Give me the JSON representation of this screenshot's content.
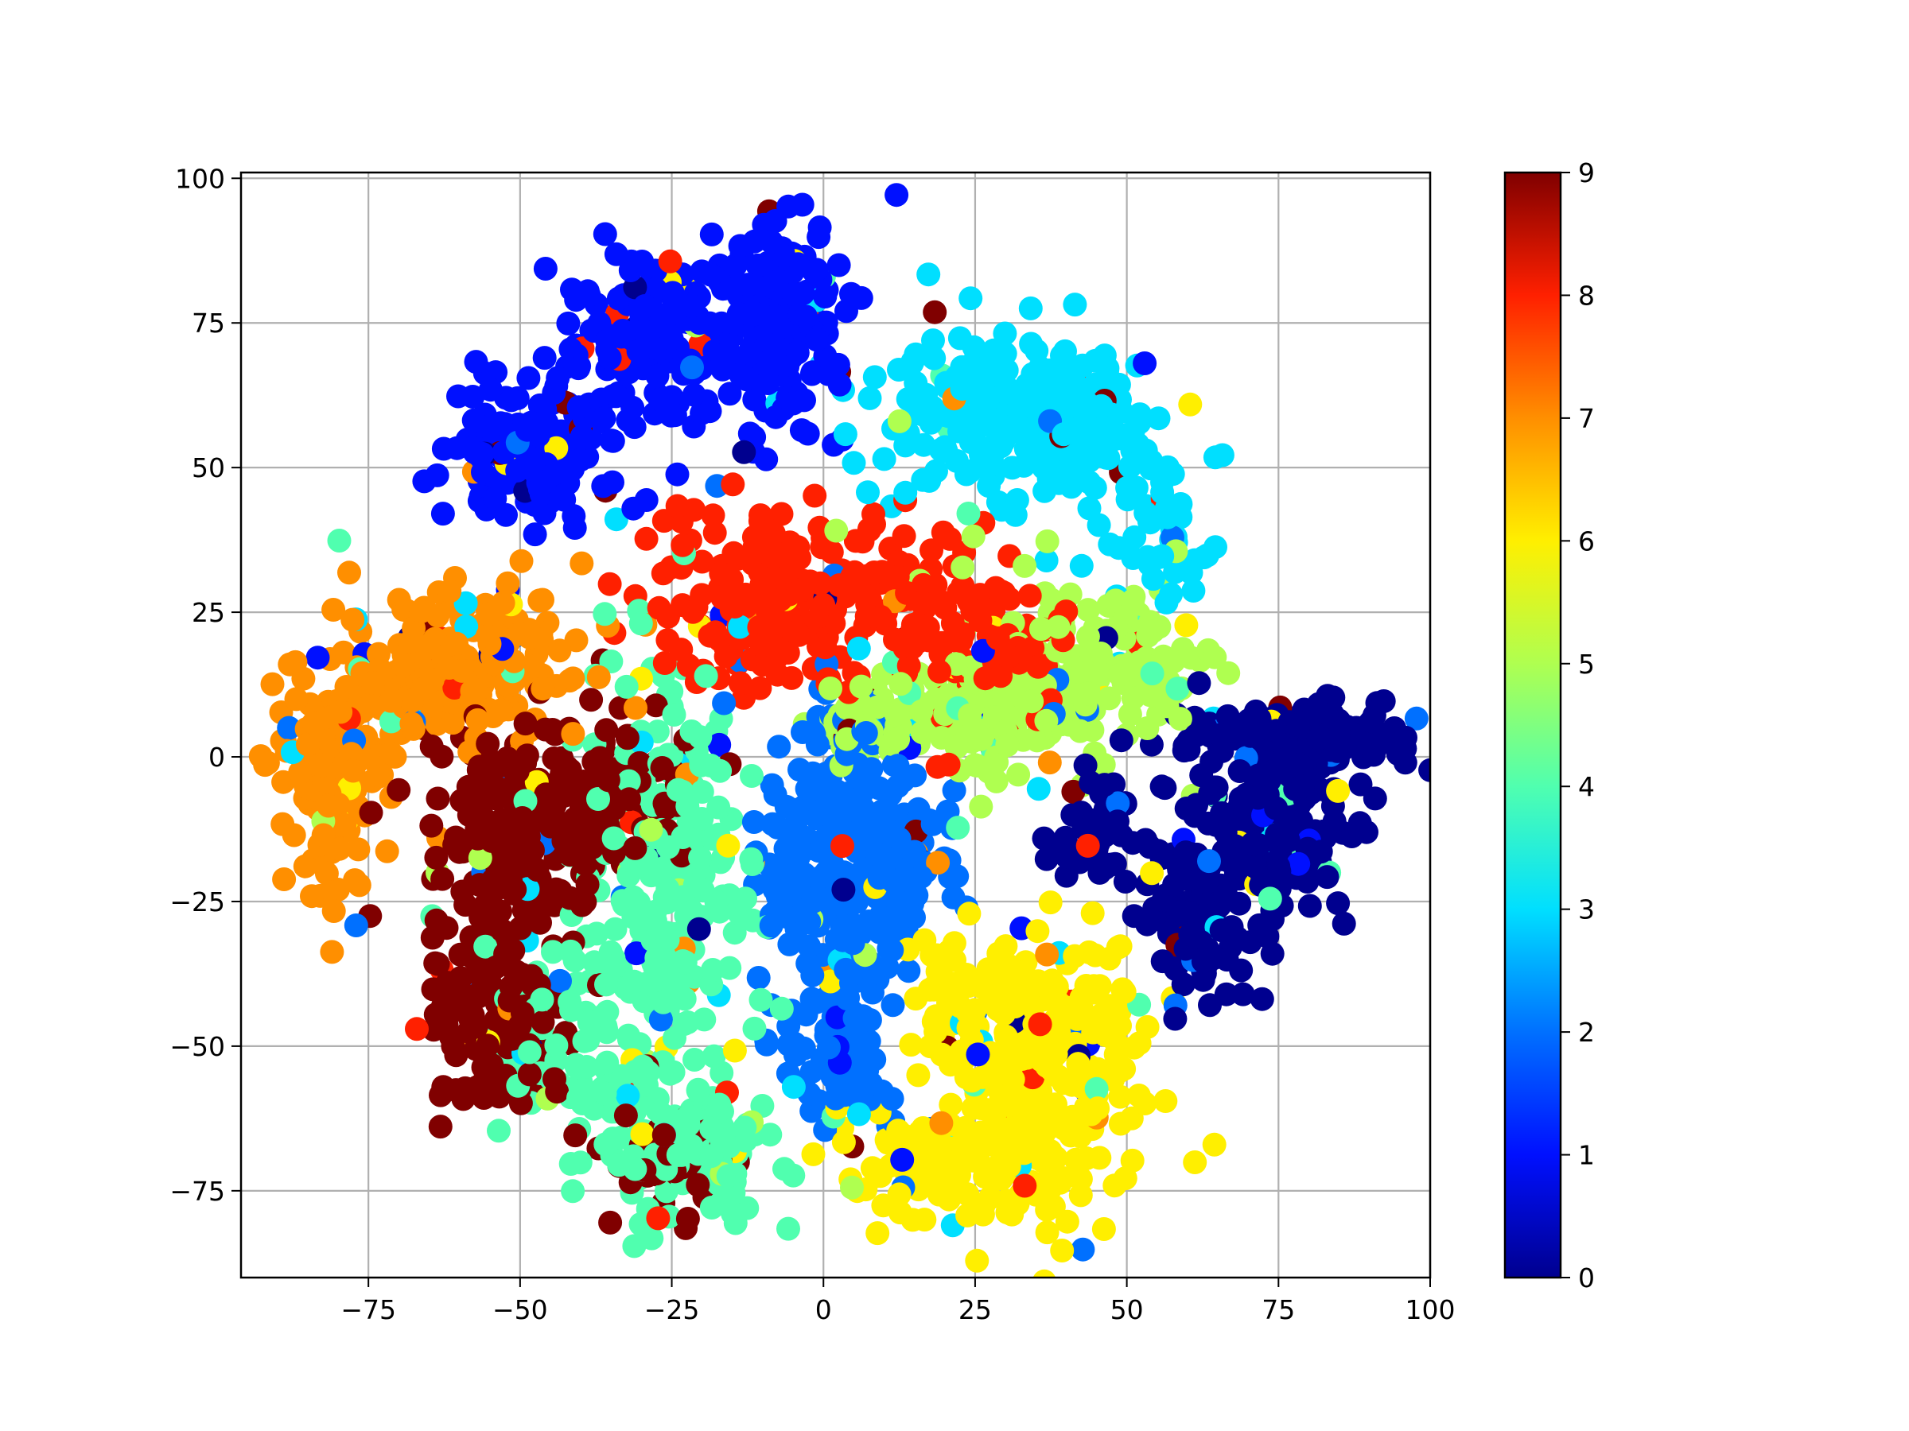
{
  "chart_data": {
    "type": "scatter",
    "title": "",
    "xlabel": "",
    "ylabel": "",
    "xlim": [
      -96,
      100
    ],
    "ylim": [
      -90,
      101
    ],
    "grid": true,
    "x_ticks": [
      -75,
      -50,
      -25,
      0,
      25,
      50,
      75,
      100
    ],
    "x_tick_labels": [
      "−75",
      "−50",
      "−25",
      "0",
      "25",
      "50",
      "75",
      "100"
    ],
    "y_ticks": [
      -75,
      -50,
      -25,
      0,
      25,
      50,
      75,
      100
    ],
    "y_tick_labels": [
      "−75",
      "−50",
      "−25",
      "0",
      "25",
      "50",
      "75",
      "100"
    ],
    "colormap": "jet",
    "colorbar": {
      "range": [
        0,
        9
      ],
      "ticks": [
        0,
        1,
        2,
        3,
        4,
        5,
        6,
        7,
        8,
        9
      ],
      "tick_labels": [
        "0",
        "1",
        "2",
        "3",
        "4",
        "5",
        "6",
        "7",
        "8",
        "9"
      ],
      "colors": [
        "#00008f",
        "#0010ff",
        "#0070ff",
        "#00dfff",
        "#50ffaf",
        "#afff50",
        "#ffef00",
        "#ff8f00",
        "#ff2000",
        "#800000"
      ]
    },
    "clusters": [
      {
        "label": 1,
        "center": [
          -7,
          77
        ],
        "spread": [
          5,
          10
        ],
        "count": 170
      },
      {
        "label": 1,
        "center": [
          -22,
          74
        ],
        "spread": [
          4,
          7
        ],
        "count": 70
      },
      {
        "label": 1,
        "center": [
          -33,
          70
        ],
        "spread": [
          5,
          8
        ],
        "count": 90
      },
      {
        "label": 1,
        "center": [
          -48,
          53
        ],
        "spread": [
          7,
          6
        ],
        "count": 170
      },
      {
        "label": 8,
        "center": [
          -9,
          28
        ],
        "spread": [
          9,
          8
        ],
        "count": 180
      },
      {
        "label": 8,
        "center": [
          13,
          26
        ],
        "spread": [
          8,
          7
        ],
        "count": 90
      },
      {
        "label": 8,
        "center": [
          27,
          18
        ],
        "spread": [
          6,
          7
        ],
        "count": 70
      },
      {
        "label": 3,
        "center": [
          30,
          60
        ],
        "spread": [
          10,
          7
        ],
        "count": 200
      },
      {
        "label": 3,
        "center": [
          45,
          55
        ],
        "spread": [
          7,
          7
        ],
        "count": 80
      },
      {
        "label": 3,
        "center": [
          57,
          36
        ],
        "spread": [
          5,
          7
        ],
        "count": 40
      },
      {
        "label": 5,
        "center": [
          30,
          8
        ],
        "spread": [
          12,
          5
        ],
        "count": 160
      },
      {
        "label": 5,
        "center": [
          50,
          18
        ],
        "spread": [
          8,
          7
        ],
        "count": 100
      },
      {
        "label": 5,
        "center": [
          10,
          5
        ],
        "spread": [
          7,
          3
        ],
        "count": 60
      },
      {
        "label": 7,
        "center": [
          -60,
          16
        ],
        "spread": [
          10,
          6
        ],
        "count": 200
      },
      {
        "label": 7,
        "center": [
          -80,
          -4
        ],
        "spread": [
          5,
          10
        ],
        "count": 130
      },
      {
        "label": 9,
        "center": [
          -50,
          -12
        ],
        "spread": [
          8,
          9
        ],
        "count": 220
      },
      {
        "label": 9,
        "center": [
          -33,
          -6
        ],
        "spread": [
          6,
          6
        ],
        "count": 80
      },
      {
        "label": 9,
        "center": [
          -55,
          -45
        ],
        "spread": [
          6,
          8
        ],
        "count": 130
      },
      {
        "label": 9,
        "center": [
          -27,
          -70
        ],
        "spread": [
          5,
          5
        ],
        "count": 50
      },
      {
        "label": 4,
        "center": [
          -25,
          -20
        ],
        "spread": [
          7,
          15
        ],
        "count": 220
      },
      {
        "label": 4,
        "center": [
          -40,
          -50
        ],
        "spread": [
          9,
          9
        ],
        "count": 100
      },
      {
        "label": 4,
        "center": [
          -22,
          -68
        ],
        "spread": [
          7,
          6
        ],
        "count": 130
      },
      {
        "label": 2,
        "center": [
          2,
          -20
        ],
        "spread": [
          6,
          14
        ],
        "count": 260
      },
      {
        "label": 2,
        "center": [
          12,
          -15
        ],
        "spread": [
          5,
          7
        ],
        "count": 80
      },
      {
        "label": 2,
        "center": [
          2,
          -50
        ],
        "spread": [
          6,
          6
        ],
        "count": 70
      },
      {
        "label": 0,
        "center": [
          78,
          3
        ],
        "spread": [
          10,
          3
        ],
        "count": 150
      },
      {
        "label": 0,
        "center": [
          75,
          -12
        ],
        "spread": [
          8,
          9
        ],
        "count": 160
      },
      {
        "label": 0,
        "center": [
          62,
          -28
        ],
        "spread": [
          4,
          8
        ],
        "count": 90
      },
      {
        "label": 0,
        "center": [
          44,
          -12
        ],
        "spread": [
          5,
          5
        ],
        "count": 50
      },
      {
        "label": 6,
        "center": [
          38,
          -55
        ],
        "spread": [
          8,
          12
        ],
        "count": 250
      },
      {
        "label": 6,
        "center": [
          20,
          -70
        ],
        "spread": [
          9,
          5
        ],
        "count": 110
      },
      {
        "label": 6,
        "center": [
          22,
          -40
        ],
        "spread": [
          5,
          5
        ],
        "count": 50
      }
    ]
  }
}
